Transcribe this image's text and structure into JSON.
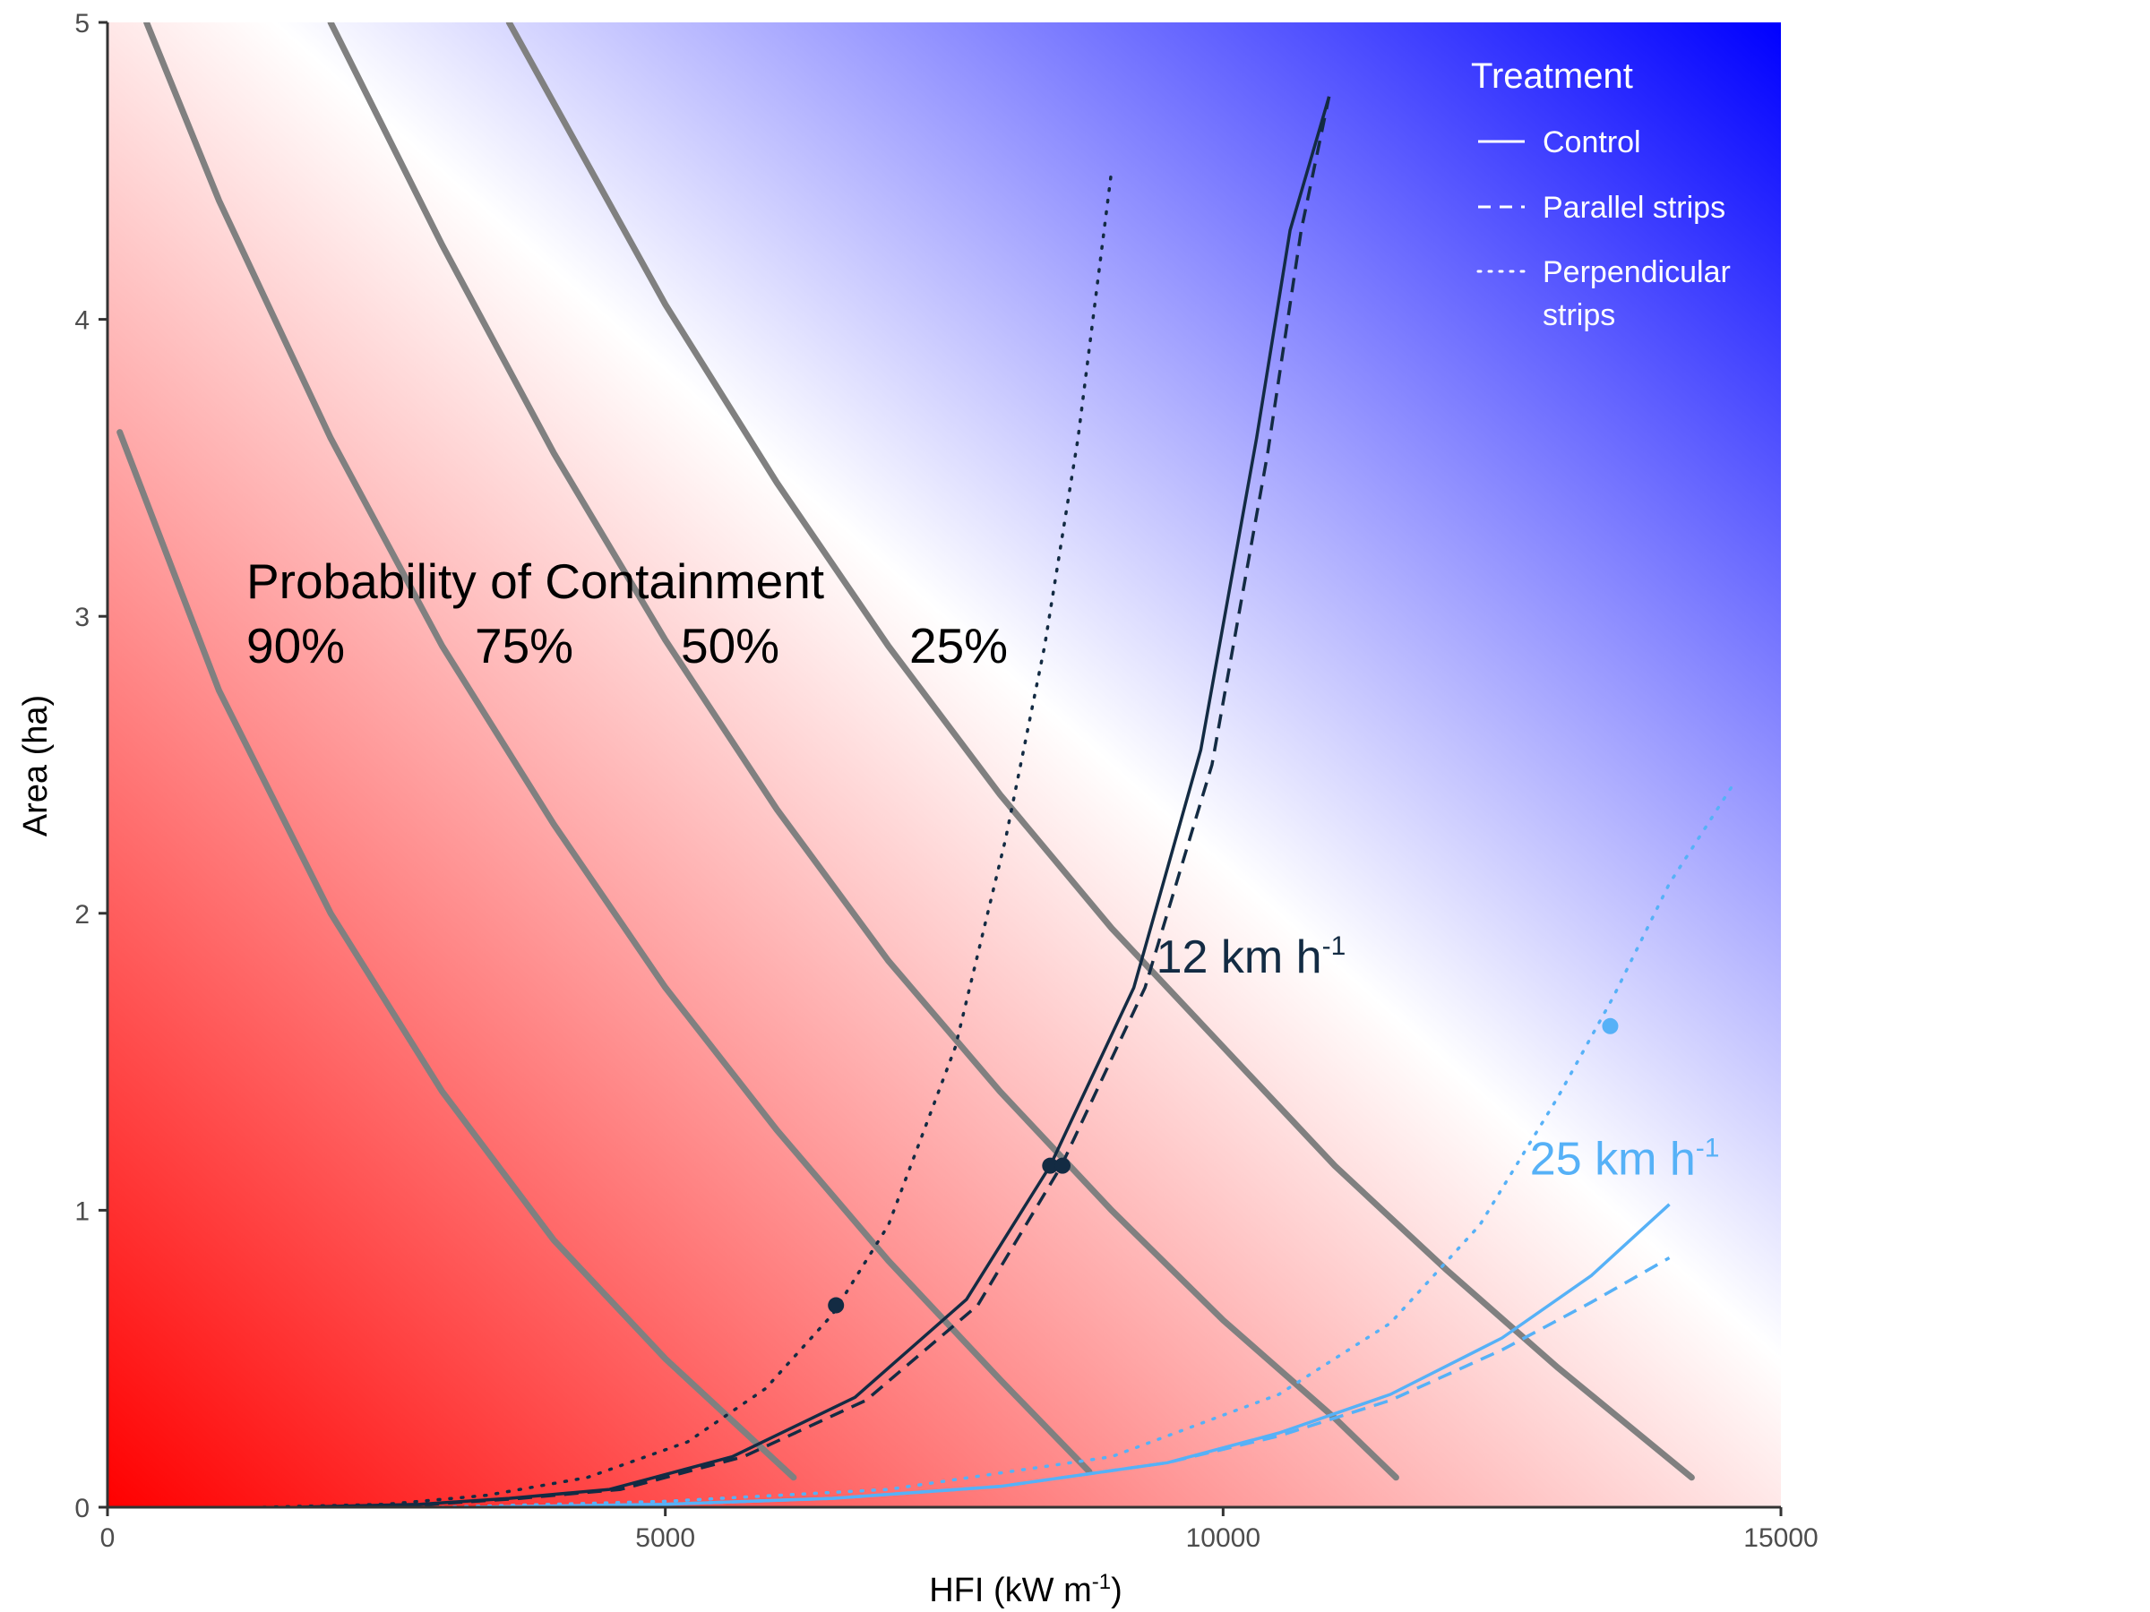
{
  "chart_data": {
    "type": "line",
    "xlabel": "HFI (kW m",
    "xlabel_sup": "-1",
    "xlabel_end": ")",
    "ylabel": "Area (ha)",
    "xlim": [
      0,
      15000
    ],
    "ylim": [
      0,
      5
    ],
    "x_ticks": [
      "0",
      "5000",
      "10000",
      "15000"
    ],
    "y_ticks": [
      "0",
      "1",
      "2",
      "3",
      "4",
      "5"
    ],
    "background": {
      "description_colors": {
        "low": "#ff0000",
        "mid": "#ffffff",
        "high": "#0000ff"
      }
    },
    "contour_title": "Probability of Containment",
    "contours": [
      {
        "name": "90%",
        "points": [
          [
            110,
            3.62
          ],
          [
            1000,
            2.75
          ],
          [
            2000,
            2.0
          ],
          [
            3000,
            1.4
          ],
          [
            4000,
            0.9
          ],
          [
            5000,
            0.5
          ],
          [
            6150,
            0.1
          ]
        ]
      },
      {
        "name": "75%",
        "points": [
          [
            350,
            5.0
          ],
          [
            1000,
            4.4
          ],
          [
            2000,
            3.6
          ],
          [
            3000,
            2.9
          ],
          [
            4000,
            2.3
          ],
          [
            5000,
            1.75
          ],
          [
            6000,
            1.27
          ],
          [
            7000,
            0.83
          ],
          [
            8000,
            0.43
          ],
          [
            8800,
            0.12
          ]
        ]
      },
      {
        "name": "50%",
        "points": [
          [
            2000,
            5.0
          ],
          [
            3000,
            4.25
          ],
          [
            4000,
            3.55
          ],
          [
            5000,
            2.92
          ],
          [
            6000,
            2.35
          ],
          [
            7000,
            1.84
          ],
          [
            8000,
            1.4
          ],
          [
            9000,
            1.0
          ],
          [
            10000,
            0.63
          ],
          [
            11000,
            0.3
          ],
          [
            11550,
            0.1
          ]
        ]
      },
      {
        "name": "25%",
        "points": [
          [
            3600,
            5.0
          ],
          [
            5000,
            4.05
          ],
          [
            6000,
            3.45
          ],
          [
            7000,
            2.9
          ],
          [
            8000,
            2.4
          ],
          [
            9000,
            1.95
          ],
          [
            10000,
            1.55
          ],
          [
            11000,
            1.15
          ],
          [
            12000,
            0.8
          ],
          [
            13000,
            0.47
          ],
          [
            14200,
            0.1
          ]
        ]
      }
    ],
    "legend_title": "Treatment",
    "legend": [
      {
        "label": "Control",
        "dash": "solid"
      },
      {
        "label": "Parallel strips",
        "dash": "dashed"
      },
      {
        "label": "Perpendicular",
        "label2": "strips",
        "dash": "dotted"
      }
    ],
    "series": [
      {
        "name": "12 km h-1 Control",
        "color": "#132b43",
        "dash": "solid",
        "points": [
          [
            1700,
            0.0
          ],
          [
            2800,
            0.01
          ],
          [
            3600,
            0.03
          ],
          [
            4500,
            0.06
          ],
          [
            5600,
            0.17
          ],
          [
            6700,
            0.37
          ],
          [
            7700,
            0.7
          ],
          [
            8450,
            1.15
          ],
          [
            9200,
            1.75
          ],
          [
            9800,
            2.55
          ],
          [
            10300,
            3.6
          ],
          [
            10600,
            4.3
          ],
          [
            10950,
            4.75
          ]
        ]
      },
      {
        "name": "12 km h-1 Parallel strips",
        "color": "#132b43",
        "dash": "dashed",
        "points": [
          [
            1800,
            0.0
          ],
          [
            2900,
            0.01
          ],
          [
            3700,
            0.03
          ],
          [
            4600,
            0.06
          ],
          [
            5700,
            0.17
          ],
          [
            6800,
            0.36
          ],
          [
            7800,
            0.68
          ],
          [
            8550,
            1.15
          ],
          [
            9300,
            1.75
          ],
          [
            9900,
            2.5
          ],
          [
            10400,
            3.55
          ],
          [
            10700,
            4.3
          ],
          [
            10950,
            4.75
          ]
        ]
      },
      {
        "name": "12 km h-1 Perpendicular strips",
        "color": "#132b43",
        "dash": "dotted",
        "points": [
          [
            1400,
            0.0
          ],
          [
            2500,
            0.01
          ],
          [
            3400,
            0.04
          ],
          [
            4300,
            0.1
          ],
          [
            5200,
            0.22
          ],
          [
            5900,
            0.4
          ],
          [
            6500,
            0.65
          ],
          [
            7000,
            0.95
          ],
          [
            7600,
            1.55
          ],
          [
            8050,
            2.25
          ],
          [
            8400,
            2.9
          ],
          [
            8700,
            3.6
          ],
          [
            9000,
            4.5
          ]
        ]
      },
      {
        "name": "25 km h-1 Control",
        "color": "#56b1f7",
        "dash": "solid",
        "points": [
          [
            3300,
            0.0
          ],
          [
            5000,
            0.01
          ],
          [
            6500,
            0.03
          ],
          [
            8000,
            0.07
          ],
          [
            9500,
            0.15
          ],
          [
            10500,
            0.25
          ],
          [
            11500,
            0.38
          ],
          [
            12500,
            0.57
          ],
          [
            13300,
            0.78
          ],
          [
            14000,
            1.02
          ]
        ]
      },
      {
        "name": "25 km h-1 Parallel strips",
        "color": "#56b1f7",
        "dash": "dashed",
        "points": [
          [
            3300,
            0.0
          ],
          [
            5000,
            0.01
          ],
          [
            6500,
            0.03
          ],
          [
            8000,
            0.07
          ],
          [
            9500,
            0.15
          ],
          [
            10500,
            0.24
          ],
          [
            11500,
            0.36
          ],
          [
            12500,
            0.53
          ],
          [
            13300,
            0.69
          ],
          [
            14000,
            0.84
          ]
        ]
      },
      {
        "name": "25 km h-1 Perpendicular strips",
        "color": "#56b1f7",
        "dash": "dotted",
        "points": [
          [
            3000,
            0.0
          ],
          [
            5000,
            0.02
          ],
          [
            7000,
            0.06
          ],
          [
            9000,
            0.17
          ],
          [
            10500,
            0.38
          ],
          [
            11500,
            0.62
          ],
          [
            12300,
            0.95
          ],
          [
            13000,
            1.38
          ],
          [
            13500,
            1.72
          ],
          [
            14000,
            2.1
          ],
          [
            14600,
            2.45
          ]
        ]
      }
    ],
    "markers": [
      {
        "x": 6530,
        "y": 0.68,
        "color": "#132b43"
      },
      {
        "x": 8450,
        "y": 1.15,
        "color": "#132b43"
      },
      {
        "x": 8560,
        "y": 1.15,
        "color": "#132b43"
      },
      {
        "x": 13470,
        "y": 1.62,
        "color": "#56b1f7"
      }
    ],
    "speed_labels": [
      {
        "text": "12 km h",
        "sup": "-1",
        "color": "#132b43",
        "x": 9400,
        "y": 1.8
      },
      {
        "text": "25 km h",
        "sup": "-1",
        "color": "#56b1f7",
        "x": 12750,
        "y": 1.12
      }
    ],
    "grid": false,
    "legend_position": "top-right (inside)"
  }
}
